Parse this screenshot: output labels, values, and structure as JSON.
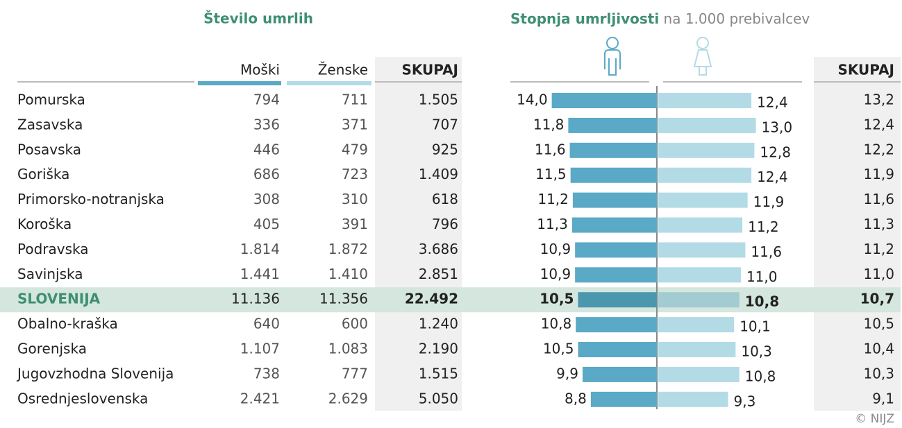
{
  "header": {
    "left_title": "Število umrlih",
    "right_title": "Stopnja umrljivosti",
    "right_subtitle": "na 1.000 prebivalcev"
  },
  "table": {
    "headers": [
      "Moški",
      "Ženske",
      "SKUPAJ",
      "SKUPAJ"
    ],
    "rows": [
      {
        "cells": [
          "Pomurska",
          "794",
          "711",
          "1.505",
          "13,2"
        ]
      },
      {
        "cells": [
          "Zasavska",
          "336",
          "371",
          "707",
          "12,4"
        ]
      },
      {
        "cells": [
          "Posavska",
          "446",
          "479",
          "925",
          "12,2"
        ]
      },
      {
        "cells": [
          "Goriška",
          "686",
          "723",
          "1.409",
          "11,9"
        ]
      },
      {
        "cells": [
          "Primorsko-notranjska",
          "308",
          "310",
          "618",
          "11,6"
        ]
      },
      {
        "cells": [
          "Koroška",
          "405",
          "391",
          "796",
          "11,3"
        ]
      },
      {
        "cells": [
          "Podravska",
          "1.814",
          "1.872",
          "3.686",
          "11,2"
        ]
      },
      {
        "cells": [
          "Savinjska",
          "1.441",
          "1.410",
          "2.851",
          "11,0"
        ]
      },
      {
        "cells": [
          "SLOVENIJA",
          "11.136",
          "11.356",
          "22.492",
          "10,7"
        ],
        "highlight": true
      },
      {
        "cells": [
          "Obalno-kraška",
          "640",
          "600",
          "1.240",
          "10,5"
        ]
      },
      {
        "cells": [
          "Gorenjska",
          "1.107",
          "1.083",
          "2.190",
          "10,4"
        ]
      },
      {
        "cells": [
          "Jugovzhodna Slovenija",
          "738",
          "777",
          "1.515",
          "10,3"
        ]
      },
      {
        "cells": [
          "Osrednjeslovenska",
          "2.421",
          "2.629",
          "5.050",
          "9,1"
        ]
      }
    ]
  },
  "chart_data": {
    "type": "bar",
    "xlim": [
      0,
      16
    ],
    "series": [
      {
        "color": "#5aa9c6",
        "highlight_color": "#4b97ad",
        "values": [
          14.0,
          11.8,
          11.6,
          11.5,
          11.2,
          11.3,
          10.9,
          10.9,
          10.5,
          10.8,
          10.5,
          9.9,
          8.8
        ],
        "value_labels": [
          "14,0",
          "11,8",
          "11,6",
          "11,5",
          "11,2",
          "11,3",
          "10,9",
          "10,9",
          "10,5",
          "10,8",
          "10,5",
          "9,9",
          "8,8"
        ]
      },
      {
        "color": "#b3dbe6",
        "highlight_color": "#a3cbd2",
        "values": [
          12.4,
          13.0,
          12.8,
          12.4,
          11.9,
          11.2,
          11.6,
          11.0,
          10.8,
          10.1,
          10.3,
          10.8,
          9.3
        ],
        "value_labels": [
          "12,4",
          "13,0",
          "12,8",
          "12,4",
          "11,9",
          "11,2",
          "11,6",
          "11,0",
          "10,8",
          "10,1",
          "10,3",
          "10,8",
          "9,3"
        ]
      }
    ]
  },
  "copyright": "© NIJZ"
}
